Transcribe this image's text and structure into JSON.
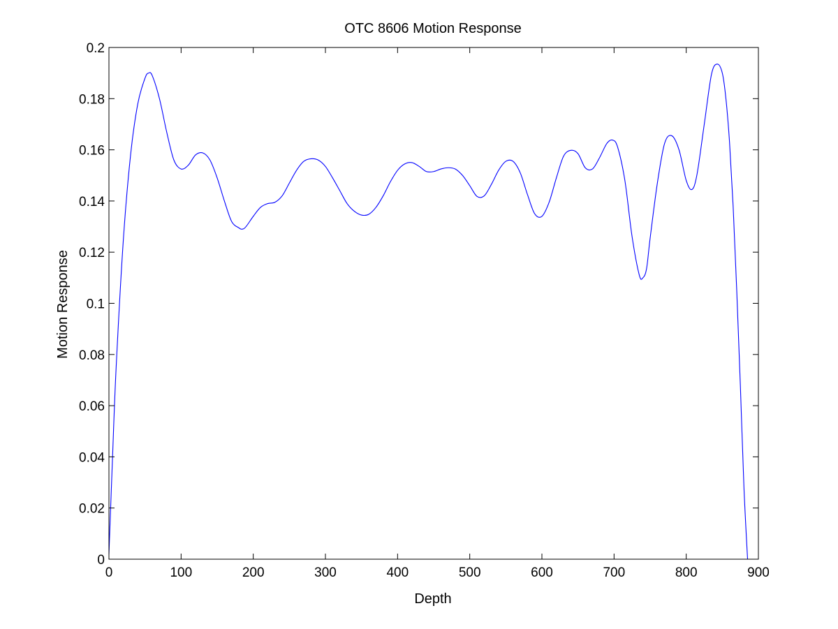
{
  "chart_data": {
    "type": "line",
    "title": "OTC 8606 Motion Response",
    "xlabel": "Depth",
    "ylabel": "Motion Response",
    "xlim": [
      0,
      900
    ],
    "ylim": [
      0,
      0.2
    ],
    "xticks": [
      0,
      100,
      200,
      300,
      400,
      500,
      600,
      700,
      800,
      900
    ],
    "xtick_labels": [
      "0",
      "100",
      "200",
      "300",
      "400",
      "500",
      "600",
      "700",
      "800",
      "900"
    ],
    "yticks": [
      0,
      0.02,
      0.04,
      0.06,
      0.08,
      0.1,
      0.12,
      0.14,
      0.16,
      0.18,
      0.2
    ],
    "ytick_labels": [
      "0",
      "0.02",
      "0.04",
      "0.06",
      "0.08",
      "0.1",
      "0.12",
      "0.14",
      "0.16",
      "0.18",
      "0.2"
    ],
    "grid": false,
    "legend": "none",
    "series": [
      {
        "color": "#0000ff",
        "x": [
          0,
          5,
          10,
          20,
          30,
          40,
          50,
          55,
          60,
          70,
          80,
          90,
          100,
          110,
          120,
          130,
          140,
          150,
          160,
          170,
          180,
          185,
          190,
          200,
          210,
          220,
          230,
          240,
          250,
          260,
          270,
          280,
          290,
          300,
          310,
          320,
          330,
          340,
          350,
          360,
          370,
          380,
          390,
          400,
          410,
          420,
          430,
          440,
          450,
          460,
          470,
          480,
          490,
          500,
          510,
          520,
          530,
          540,
          550,
          560,
          570,
          580,
          590,
          600,
          610,
          620,
          630,
          640,
          650,
          660,
          670,
          680,
          690,
          698,
          705,
          715,
          725,
          735,
          740,
          745,
          750,
          760,
          770,
          780,
          790,
          800,
          808,
          815,
          825,
          835,
          843,
          850,
          855,
          860,
          865,
          870,
          875,
          880,
          885
        ],
        "y": [
          0.002,
          0.04,
          0.075,
          0.125,
          0.158,
          0.178,
          0.188,
          0.19,
          0.189,
          0.18,
          0.167,
          0.156,
          0.1525,
          0.154,
          0.158,
          0.1588,
          0.156,
          0.149,
          0.14,
          0.132,
          0.1295,
          0.129,
          0.13,
          0.134,
          0.1375,
          0.139,
          0.1395,
          0.142,
          0.147,
          0.152,
          0.1555,
          0.1565,
          0.156,
          0.1535,
          0.149,
          0.144,
          0.139,
          0.136,
          0.1345,
          0.1348,
          0.1375,
          0.142,
          0.1475,
          0.152,
          0.1545,
          0.155,
          0.1535,
          0.1515,
          0.1515,
          0.1525,
          0.153,
          0.1525,
          0.15,
          0.146,
          0.1418,
          0.142,
          0.1465,
          0.152,
          0.1555,
          0.1555,
          0.151,
          0.1425,
          0.135,
          0.134,
          0.1395,
          0.149,
          0.1575,
          0.1598,
          0.1585,
          0.153,
          0.1525,
          0.157,
          0.1625,
          0.1638,
          0.161,
          0.148,
          0.126,
          0.111,
          0.11,
          0.1135,
          0.1255,
          0.147,
          0.1625,
          0.1655,
          0.16,
          0.148,
          0.1445,
          0.1505,
          0.17,
          0.1895,
          0.1935,
          0.19,
          0.18,
          0.163,
          0.138,
          0.105,
          0.068,
          0.028,
          0.0
        ]
      }
    ]
  }
}
